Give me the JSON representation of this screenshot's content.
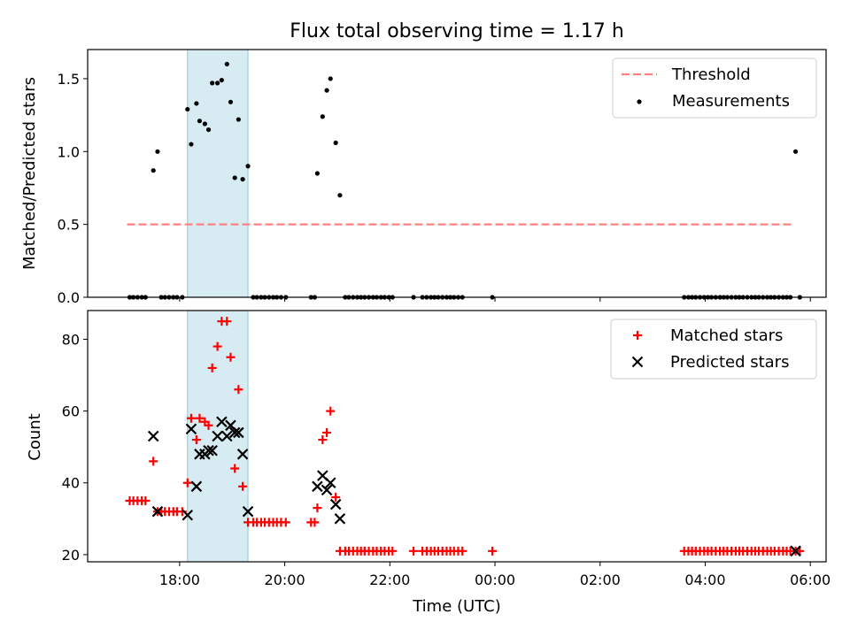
{
  "chart_data": [
    {
      "type": "scatter",
      "title": "Flux total observing time = 1.17 h",
      "ylabel": "Matched/Predicted stars",
      "xlabel": "",
      "xlim": [
        16.25,
        30.3
      ],
      "ylim": [
        0,
        1.7
      ],
      "yticks": [
        0.0,
        0.5,
        1.0,
        1.5
      ],
      "ytick_labels": [
        "0.0",
        "0.5",
        "1.0",
        "1.5"
      ],
      "xticks": [
        18,
        20,
        22,
        24,
        26,
        28,
        30
      ],
      "grid": false,
      "legend_position": "top-right",
      "highlight_span": [
        18.15,
        19.3
      ],
      "threshold": {
        "name": "Threshold",
        "y": 0.5,
        "x_range": [
          17.0,
          29.7
        ],
        "color": "#ff8080"
      },
      "series": [
        {
          "name": "Measurements",
          "color": "#000000",
          "points": [
            [
              17.05,
              0
            ],
            [
              17.12,
              0
            ],
            [
              17.2,
              0
            ],
            [
              17.28,
              0
            ],
            [
              17.35,
              0
            ],
            [
              17.5,
              0.87
            ],
            [
              17.58,
              1.0
            ],
            [
              17.65,
              0
            ],
            [
              17.72,
              0
            ],
            [
              17.8,
              0
            ],
            [
              17.88,
              0
            ],
            [
              17.95,
              0
            ],
            [
              18.05,
              0
            ],
            [
              18.15,
              1.29
            ],
            [
              18.22,
              1.05
            ],
            [
              18.32,
              1.33
            ],
            [
              18.38,
              1.21
            ],
            [
              18.48,
              1.19
            ],
            [
              18.55,
              1.15
            ],
            [
              18.62,
              1.47
            ],
            [
              18.72,
              1.47
            ],
            [
              18.8,
              1.49
            ],
            [
              18.9,
              1.6
            ],
            [
              18.97,
              1.34
            ],
            [
              19.05,
              0.82
            ],
            [
              19.12,
              1.22
            ],
            [
              19.2,
              0.81
            ],
            [
              19.3,
              0.9
            ],
            [
              19.4,
              0
            ],
            [
              19.47,
              0
            ],
            [
              19.55,
              0
            ],
            [
              19.62,
              0
            ],
            [
              19.7,
              0
            ],
            [
              19.78,
              0
            ],
            [
              19.85,
              0
            ],
            [
              19.93,
              0
            ],
            [
              20.02,
              0
            ],
            [
              20.5,
              0
            ],
            [
              20.57,
              0
            ],
            [
              20.62,
              0.85
            ],
            [
              20.72,
              1.24
            ],
            [
              20.8,
              1.42
            ],
            [
              20.87,
              1.5
            ],
            [
              20.97,
              1.06
            ],
            [
              21.05,
              0.7
            ],
            [
              21.15,
              0
            ],
            [
              21.22,
              0
            ],
            [
              21.3,
              0
            ],
            [
              21.38,
              0
            ],
            [
              21.45,
              0
            ],
            [
              21.52,
              0
            ],
            [
              21.6,
              0
            ],
            [
              21.68,
              0
            ],
            [
              21.75,
              0
            ],
            [
              21.83,
              0
            ],
            [
              21.9,
              0
            ],
            [
              21.98,
              0
            ],
            [
              22.05,
              0
            ],
            [
              22.45,
              0
            ],
            [
              22.62,
              0
            ],
            [
              22.7,
              0
            ],
            [
              22.78,
              0
            ],
            [
              22.85,
              0
            ],
            [
              22.92,
              0
            ],
            [
              23.0,
              0
            ],
            [
              23.08,
              0
            ],
            [
              23.15,
              0
            ],
            [
              23.22,
              0
            ],
            [
              23.3,
              0
            ],
            [
              23.38,
              0
            ],
            [
              23.95,
              0
            ],
            [
              27.6,
              0
            ],
            [
              27.68,
              0
            ],
            [
              27.75,
              0
            ],
            [
              27.82,
              0
            ],
            [
              27.9,
              0
            ],
            [
              27.98,
              0
            ],
            [
              28.05,
              0
            ],
            [
              28.12,
              0
            ],
            [
              28.2,
              0
            ],
            [
              28.28,
              0
            ],
            [
              28.35,
              0
            ],
            [
              28.42,
              0
            ],
            [
              28.5,
              0
            ],
            [
              28.58,
              0
            ],
            [
              28.65,
              0
            ],
            [
              28.72,
              0
            ],
            [
              28.8,
              0
            ],
            [
              28.88,
              0
            ],
            [
              28.95,
              0
            ],
            [
              29.02,
              0
            ],
            [
              29.1,
              0
            ],
            [
              29.18,
              0
            ],
            [
              29.25,
              0
            ],
            [
              29.32,
              0
            ],
            [
              29.4,
              0
            ],
            [
              29.48,
              0
            ],
            [
              29.55,
              0
            ],
            [
              29.62,
              0
            ],
            [
              29.72,
              1.0
            ],
            [
              29.8,
              0
            ]
          ]
        }
      ]
    },
    {
      "type": "scatter",
      "title": "",
      "ylabel": "Count",
      "xlabel": "Time (UTC)",
      "xlim": [
        16.25,
        30.3
      ],
      "ylim": [
        18,
        88
      ],
      "yticks": [
        20,
        40,
        60,
        80
      ],
      "ytick_labels": [
        "20",
        "40",
        "60",
        "80"
      ],
      "xticks": [
        18,
        20,
        22,
        24,
        26,
        28,
        30
      ],
      "xtick_labels": [
        "18:00",
        "20:00",
        "22:00",
        "00:00",
        "02:00",
        "04:00",
        "06:00"
      ],
      "grid": false,
      "legend_position": "top-right",
      "highlight_span": [
        18.15,
        19.3
      ],
      "series": [
        {
          "name": "Matched stars",
          "marker": "+",
          "color": "#ff0000",
          "points": [
            [
              17.05,
              35
            ],
            [
              17.12,
              35
            ],
            [
              17.2,
              35
            ],
            [
              17.28,
              35
            ],
            [
              17.35,
              35
            ],
            [
              17.5,
              46
            ],
            [
              17.58,
              32
            ],
            [
              17.65,
              32
            ],
            [
              17.72,
              32
            ],
            [
              17.8,
              32
            ],
            [
              17.88,
              32
            ],
            [
              17.95,
              32
            ],
            [
              18.05,
              32
            ],
            [
              18.15,
              40
            ],
            [
              18.22,
              58
            ],
            [
              18.32,
              52
            ],
            [
              18.38,
              58
            ],
            [
              18.48,
              57
            ],
            [
              18.55,
              56
            ],
            [
              18.62,
              72
            ],
            [
              18.72,
              78
            ],
            [
              18.8,
              85
            ],
            [
              18.9,
              85
            ],
            [
              18.97,
              75
            ],
            [
              19.05,
              44
            ],
            [
              19.12,
              66
            ],
            [
              19.2,
              39
            ],
            [
              19.3,
              29
            ],
            [
              19.4,
              29
            ],
            [
              19.47,
              29
            ],
            [
              19.55,
              29
            ],
            [
              19.62,
              29
            ],
            [
              19.7,
              29
            ],
            [
              19.78,
              29
            ],
            [
              19.85,
              29
            ],
            [
              19.93,
              29
            ],
            [
              20.02,
              29
            ],
            [
              20.5,
              29
            ],
            [
              20.57,
              29
            ],
            [
              20.62,
              33
            ],
            [
              20.72,
              52
            ],
            [
              20.8,
              54
            ],
            [
              20.87,
              60
            ],
            [
              20.97,
              36
            ],
            [
              21.05,
              21
            ],
            [
              21.15,
              21
            ],
            [
              21.22,
              21
            ],
            [
              21.3,
              21
            ],
            [
              21.38,
              21
            ],
            [
              21.45,
              21
            ],
            [
              21.52,
              21
            ],
            [
              21.6,
              21
            ],
            [
              21.68,
              21
            ],
            [
              21.75,
              21
            ],
            [
              21.83,
              21
            ],
            [
              21.9,
              21
            ],
            [
              21.98,
              21
            ],
            [
              22.05,
              21
            ],
            [
              22.45,
              21
            ],
            [
              22.62,
              21
            ],
            [
              22.7,
              21
            ],
            [
              22.78,
              21
            ],
            [
              22.85,
              21
            ],
            [
              22.92,
              21
            ],
            [
              23.0,
              21
            ],
            [
              23.08,
              21
            ],
            [
              23.15,
              21
            ],
            [
              23.22,
              21
            ],
            [
              23.3,
              21
            ],
            [
              23.38,
              21
            ],
            [
              23.95,
              21
            ],
            [
              27.6,
              21
            ],
            [
              27.68,
              21
            ],
            [
              27.75,
              21
            ],
            [
              27.82,
              21
            ],
            [
              27.9,
              21
            ],
            [
              27.98,
              21
            ],
            [
              28.05,
              21
            ],
            [
              28.12,
              21
            ],
            [
              28.2,
              21
            ],
            [
              28.28,
              21
            ],
            [
              28.35,
              21
            ],
            [
              28.42,
              21
            ],
            [
              28.5,
              21
            ],
            [
              28.58,
              21
            ],
            [
              28.65,
              21
            ],
            [
              28.72,
              21
            ],
            [
              28.8,
              21
            ],
            [
              28.88,
              21
            ],
            [
              28.95,
              21
            ],
            [
              29.02,
              21
            ],
            [
              29.1,
              21
            ],
            [
              29.18,
              21
            ],
            [
              29.25,
              21
            ],
            [
              29.32,
              21
            ],
            [
              29.4,
              21
            ],
            [
              29.48,
              21
            ],
            [
              29.55,
              21
            ],
            [
              29.62,
              21
            ],
            [
              29.72,
              21
            ],
            [
              29.8,
              21
            ]
          ]
        },
        {
          "name": "Predicted stars",
          "marker": "x",
          "color": "#000000",
          "points": [
            [
              17.5,
              53
            ],
            [
              17.58,
              32
            ],
            [
              18.15,
              31
            ],
            [
              18.22,
              55
            ],
            [
              18.32,
              39
            ],
            [
              18.38,
              48
            ],
            [
              18.48,
              48
            ],
            [
              18.55,
              49
            ],
            [
              18.62,
              49
            ],
            [
              18.72,
              53
            ],
            [
              18.8,
              57
            ],
            [
              18.9,
              53
            ],
            [
              18.97,
              56
            ],
            [
              19.05,
              54
            ],
            [
              19.12,
              54
            ],
            [
              19.2,
              48
            ],
            [
              19.3,
              32
            ],
            [
              20.62,
              39
            ],
            [
              20.72,
              42
            ],
            [
              20.8,
              38
            ],
            [
              20.87,
              40
            ],
            [
              20.97,
              34
            ],
            [
              21.05,
              30
            ],
            [
              29.72,
              21
            ]
          ]
        }
      ]
    }
  ]
}
